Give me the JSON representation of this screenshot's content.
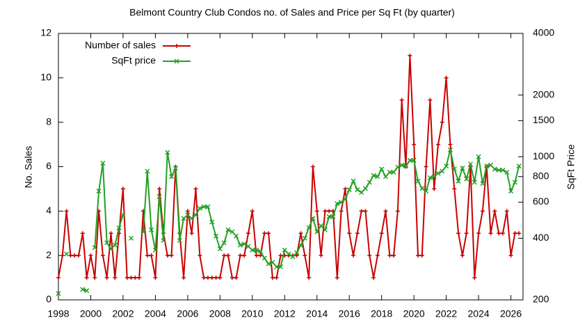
{
  "chart_data": {
    "type": "line",
    "title": "Belmont Country Club Condos no. of Sales and Price per Sq Ft (by quarter)",
    "ylabel": "No. Sales",
    "y2label": "SqFt Price",
    "xlim": [
      1998,
      2026.75
    ],
    "xticks": [
      1998,
      2000,
      2002,
      2004,
      2006,
      2008,
      2010,
      2012,
      2014,
      2016,
      2018,
      2020,
      2022,
      2024,
      2026
    ],
    "ylim": [
      0,
      12
    ],
    "yticks": [
      0,
      2,
      4,
      6,
      8,
      10,
      12
    ],
    "y2lim": [
      200,
      4000
    ],
    "y2ticks": [
      200,
      400,
      600,
      800,
      1000,
      1500,
      2000,
      4000
    ],
    "y2log": true,
    "legend": "top-left",
    "x": [
      1998,
      1998.25,
      1998.5,
      1998.75,
      1999,
      1999.25,
      1999.5,
      1999.75,
      2000,
      2000.25,
      2000.5,
      2000.75,
      2001,
      2001.25,
      2001.5,
      2001.75,
      2002,
      2002.25,
      2002.5,
      2002.75,
      2003,
      2003.25,
      2003.5,
      2003.75,
      2004,
      2004.25,
      2004.5,
      2004.75,
      2005,
      2005.25,
      2005.5,
      2005.75,
      2006,
      2006.25,
      2006.5,
      2006.75,
      2007,
      2007.25,
      2007.5,
      2007.75,
      2008,
      2008.25,
      2008.5,
      2008.75,
      2009,
      2009.25,
      2009.5,
      2009.75,
      2010,
      2010.25,
      2010.5,
      2010.75,
      2011,
      2011.25,
      2011.5,
      2011.75,
      2012,
      2012.25,
      2012.5,
      2012.75,
      2013,
      2013.25,
      2013.5,
      2013.75,
      2014,
      2014.25,
      2014.5,
      2014.75,
      2015,
      2015.25,
      2015.5,
      2015.75,
      2016,
      2016.25,
      2016.5,
      2016.75,
      2017,
      2017.25,
      2017.5,
      2017.75,
      2018,
      2018.25,
      2018.5,
      2018.75,
      2019,
      2019.25,
      2019.5,
      2019.75,
      2020,
      2020.25,
      2020.5,
      2020.75,
      2021,
      2021.25,
      2021.5,
      2021.75,
      2022,
      2022.25,
      2022.5,
      2022.75,
      2023,
      2023.25,
      2023.5,
      2023.75,
      2024,
      2024.25,
      2024.5,
      2024.75,
      2025,
      2025.25,
      2025.5,
      2025.75,
      2026,
      2026.25,
      2026.5
    ],
    "series": [
      {
        "name": "Number of sales",
        "color": "#c80000",
        "marker": "plus",
        "values": [
          1,
          2,
          4,
          2,
          2,
          2,
          3,
          1,
          2,
          1,
          4,
          2,
          1,
          3,
          1,
          3,
          5,
          1,
          1,
          1,
          1,
          4,
          2,
          2,
          1,
          5,
          3,
          2,
          2,
          6,
          3,
          1,
          4,
          3,
          5,
          2,
          1,
          1,
          1,
          1,
          1,
          2,
          2,
          1,
          1,
          2,
          2,
          3,
          4,
          2,
          2,
          3,
          3,
          1,
          1,
          2,
          2,
          2,
          2,
          2,
          3,
          2,
          1,
          6,
          4,
          2,
          4,
          4,
          4,
          1,
          4,
          5,
          3,
          2,
          3,
          4,
          4,
          2,
          1,
          2,
          3,
          4,
          2,
          2,
          4,
          9,
          6,
          11,
          7,
          2,
          2,
          6,
          9,
          5,
          7,
          8,
          10,
          7,
          5,
          3,
          2,
          3,
          6,
          1,
          3,
          4,
          6,
          3,
          4,
          3,
          3,
          4,
          2,
          3,
          3
        ]
      },
      {
        "name": "SqFt price",
        "color": "#22a022",
        "marker": "cross",
        "axis": "y2",
        "values": [
          215,
          null,
          335,
          null,
          null,
          null,
          225,
          222,
          null,
          360,
          680,
          930,
          380,
          355,
          370,
          450,
          520,
          null,
          400,
          null,
          null,
          430,
          850,
          440,
          350,
          640,
          390,
          1050,
          800,
          880,
          390,
          500,
          520,
          500,
          520,
          560,
          570,
          570,
          480,
          410,
          355,
          380,
          440,
          430,
          410,
          370,
          375,
          365,
          350,
          350,
          345,
          320,
          300,
          305,
          290,
          290,
          350,
          335,
          325,
          340,
          370,
          400,
          450,
          500,
          430,
          460,
          440,
          510,
          510,
          590,
          600,
          620,
          690,
          760,
          690,
          670,
          700,
          750,
          810,
          800,
          870,
          800,
          840,
          840,
          890,
          910,
          900,
          960,
          960,
          760,
          700,
          680,
          790,
          800,
          830,
          850,
          900,
          1080,
          870,
          760,
          880,
          780,
          920,
          750,
          1000,
          740,
          900,
          910,
          870,
          860,
          860,
          840,
          680,
          750,
          900
        ]
      }
    ]
  }
}
